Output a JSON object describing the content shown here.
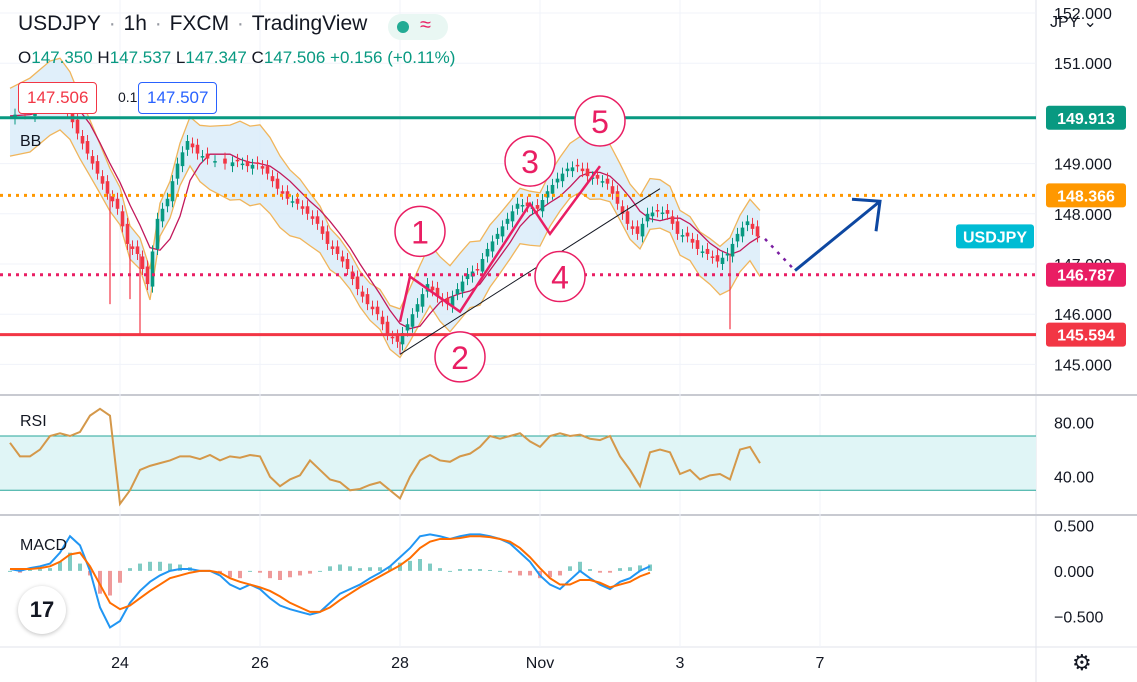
{
  "header": {
    "symbol": "USDJPY",
    "interval": "1h",
    "exchange": "FXCM",
    "platform": "TradingView",
    "open_label": "O",
    "open": "147.350",
    "high_label": "H",
    "high": "147.537",
    "low_label": "L",
    "low": "147.347",
    "close_label": "C",
    "close": "147.506",
    "change": "+0.156 (+0.11%)",
    "bid": "147.506",
    "spread": "0.1",
    "ask": "147.507"
  },
  "currency": "JPY",
  "colors": {
    "up": "#089981",
    "down": "#f23645",
    "bb_fill": "#d6eaf8",
    "bb_band": "#f0b55b",
    "bb_basis": "#c2185b",
    "wave_labels": "#e91e63",
    "arrow": "#0d47a1",
    "level_teal": "#089981",
    "level_orange": "#ff9800",
    "level_pink": "#e91e63",
    "level_red": "#f23645",
    "rsi_line": "#d4984a",
    "macd_line": "#2196f3",
    "signal_line": "#ff6d00"
  },
  "chart_data": {
    "type": "line",
    "price_pane": {
      "y_ticks": [
        "152.000",
        "151.000",
        "149.000",
        "148.000",
        "147.000",
        "146.000",
        "145.000"
      ],
      "ylim": [
        144.45,
        152.1
      ],
      "x_tick_labels": [
        "24",
        "26",
        "28",
        "Nov",
        "3",
        "7"
      ],
      "indicator": "BB",
      "levels": [
        {
          "label": "149.913",
          "value": 149.913,
          "style": "solid",
          "color": "#089981"
        },
        {
          "label": "148.366",
          "value": 148.366,
          "style": "dotted",
          "color": "#ff9800"
        },
        {
          "label": "146.787",
          "value": 146.787,
          "style": "dotted",
          "color": "#e91e63"
        },
        {
          "label": "145.594",
          "value": 145.594,
          "style": "solid",
          "color": "#f23645"
        }
      ],
      "symbol_tag": "USDJPY",
      "symbol_tag_value": 147.55,
      "price_path": [
        [
          0,
          149.95
        ],
        [
          2,
          150.0
        ],
        [
          4,
          150.25
        ],
        [
          5,
          150.3
        ],
        [
          6,
          150.05
        ],
        [
          7,
          149.6
        ],
        [
          8,
          149.2
        ],
        [
          9,
          148.8
        ],
        [
          10,
          148.4
        ],
        [
          11,
          148.1
        ],
        [
          12,
          147.4
        ],
        [
          13,
          147.2
        ],
        [
          14,
          146.6
        ],
        [
          15,
          147.9
        ],
        [
          16,
          148.3
        ],
        [
          17,
          149.0
        ],
        [
          18,
          149.45
        ],
        [
          19,
          149.2
        ],
        [
          20,
          149.1
        ],
        [
          22,
          149.0
        ],
        [
          23,
          149.05
        ],
        [
          24,
          148.95
        ],
        [
          25,
          149.0
        ],
        [
          26,
          148.8
        ],
        [
          27,
          148.5
        ],
        [
          28,
          148.3
        ],
        [
          29,
          148.2
        ],
        [
          30,
          148.0
        ],
        [
          31,
          147.8
        ],
        [
          32,
          147.4
        ],
        [
          33,
          147.2
        ],
        [
          34,
          146.9
        ],
        [
          35,
          146.5
        ],
        [
          36,
          146.2
        ],
        [
          37,
          146.0
        ],
        [
          38,
          145.6
        ],
        [
          39,
          145.45
        ],
        [
          40,
          145.8
        ],
        [
          41,
          146.2
        ],
        [
          42,
          146.6
        ],
        [
          43,
          146.35
        ],
        [
          44,
          146.2
        ],
        [
          45,
          146.5
        ],
        [
          46,
          146.8
        ],
        [
          47,
          146.9
        ],
        [
          48,
          147.3
        ],
        [
          49,
          147.6
        ],
        [
          50,
          147.9
        ],
        [
          51,
          148.2
        ],
        [
          52,
          148.15
        ],
        [
          53,
          148.1
        ],
        [
          54,
          148.45
        ],
        [
          55,
          148.7
        ],
        [
          56,
          148.9
        ],
        [
          57,
          148.95
        ],
        [
          58,
          148.75
        ],
        [
          59,
          148.7
        ],
        [
          60,
          148.6
        ],
        [
          61,
          148.2
        ],
        [
          62,
          147.8
        ],
        [
          63,
          147.6
        ],
        [
          64,
          148.0
        ],
        [
          65,
          148.05
        ],
        [
          66,
          148.0
        ],
        [
          67,
          147.6
        ],
        [
          68,
          147.55
        ],
        [
          69,
          147.3
        ],
        [
          70,
          147.2
        ],
        [
          71,
          147.05
        ],
        [
          72,
          147.2
        ],
        [
          73,
          147.6
        ],
        [
          74,
          147.85
        ],
        [
          75,
          147.55
        ]
      ],
      "spikes": [
        {
          "x": 10,
          "low": 146.2
        },
        {
          "x": 12,
          "low": 146.3
        },
        {
          "x": 13,
          "low": 145.6
        },
        {
          "x": 39,
          "low": 145.2
        },
        {
          "x": 72,
          "low": 145.7
        }
      ],
      "elliott_waves": [
        {
          "label": "1",
          "value": 146.75
        },
        {
          "label": "2",
          "value": 146.05
        },
        {
          "label": "3",
          "value": 148.2
        },
        {
          "label": "4",
          "value": 147.6
        },
        {
          "label": "5",
          "value": 148.95
        }
      ],
      "wave_circle_labels": [
        "1",
        "2",
        "3",
        "4",
        "5"
      ],
      "forecast": [
        {
          "x": 75.5,
          "price": 147.5
        },
        {
          "x": 78.5,
          "price": 146.87
        },
        {
          "x": 87,
          "price": 148.25
        }
      ]
    },
    "rsi_pane": {
      "label": "RSI",
      "y_ticks": [
        "80.00",
        "40.00"
      ],
      "ylim": [
        14,
        98
      ],
      "band": [
        70,
        30
      ],
      "values": [
        [
          0,
          65
        ],
        [
          1,
          55
        ],
        [
          2,
          55
        ],
        [
          3,
          60
        ],
        [
          4,
          70
        ],
        [
          5,
          72
        ],
        [
          6,
          70
        ],
        [
          7,
          73
        ],
        [
          8,
          85
        ],
        [
          9,
          90
        ],
        [
          10,
          85
        ],
        [
          11,
          20
        ],
        [
          12,
          30
        ],
        [
          13,
          45
        ],
        [
          14,
          48
        ],
        [
          15,
          50
        ],
        [
          16,
          52
        ],
        [
          17,
          55
        ],
        [
          18,
          55
        ],
        [
          19,
          53
        ],
        [
          20,
          56
        ],
        [
          21,
          52
        ],
        [
          22,
          55
        ],
        [
          23,
          54
        ],
        [
          24,
          56
        ],
        [
          25,
          55
        ],
        [
          26,
          40
        ],
        [
          27,
          33
        ],
        [
          28,
          38
        ],
        [
          29,
          41
        ],
        [
          30,
          52
        ],
        [
          31,
          45
        ],
        [
          32,
          38
        ],
        [
          33,
          36
        ],
        [
          34,
          30
        ],
        [
          35,
          31
        ],
        [
          36,
          34
        ],
        [
          37,
          36
        ],
        [
          38,
          30
        ],
        [
          39,
          24
        ],
        [
          40,
          40
        ],
        [
          41,
          52
        ],
        [
          42,
          56
        ],
        [
          43,
          52
        ],
        [
          44,
          51
        ],
        [
          45,
          55
        ],
        [
          46,
          57
        ],
        [
          47,
          62
        ],
        [
          48,
          70
        ],
        [
          49,
          68
        ],
        [
          50,
          70
        ],
        [
          51,
          72
        ],
        [
          52,
          66
        ],
        [
          53,
          62
        ],
        [
          54,
          70
        ],
        [
          55,
          72
        ],
        [
          56,
          70
        ],
        [
          57,
          71
        ],
        [
          58,
          68
        ],
        [
          59,
          67
        ],
        [
          60,
          70
        ],
        [
          61,
          55
        ],
        [
          62,
          45
        ],
        [
          63,
          33
        ],
        [
          64,
          58
        ],
        [
          65,
          60
        ],
        [
          66,
          58
        ],
        [
          67,
          42
        ],
        [
          68,
          45
        ],
        [
          69,
          38
        ],
        [
          70,
          41
        ],
        [
          71,
          42
        ],
        [
          72,
          38
        ],
        [
          73,
          60
        ],
        [
          74,
          62
        ],
        [
          75,
          50
        ]
      ]
    },
    "macd_pane": {
      "label": "MACD",
      "y_ticks": [
        "0.500",
        "0.000",
        "−0.500"
      ],
      "ylim": [
        -0.78,
        0.58
      ],
      "macd": [
        [
          0,
          0.02
        ],
        [
          1,
          0.0
        ],
        [
          2,
          0.03
        ],
        [
          3,
          0.05
        ],
        [
          4,
          0.08
        ],
        [
          5,
          0.2
        ],
        [
          6,
          0.38
        ],
        [
          7,
          0.28
        ],
        [
          8,
          0.0
        ],
        [
          9,
          -0.4
        ],
        [
          10,
          -0.62
        ],
        [
          11,
          -0.55
        ],
        [
          12,
          -0.35
        ],
        [
          13,
          -0.22
        ],
        [
          14,
          -0.12
        ],
        [
          15,
          -0.05
        ],
        [
          16,
          0.0
        ],
        [
          17,
          0.02
        ],
        [
          18,
          0.02
        ],
        [
          19,
          0.0
        ],
        [
          20,
          0.0
        ],
        [
          21,
          -0.05
        ],
        [
          22,
          -0.15
        ],
        [
          23,
          -0.2
        ],
        [
          24,
          -0.15
        ],
        [
          25,
          -0.2
        ],
        [
          26,
          -0.3
        ],
        [
          27,
          -0.38
        ],
        [
          28,
          -0.42
        ],
        [
          29,
          -0.45
        ],
        [
          30,
          -0.48
        ],
        [
          31,
          -0.45
        ],
        [
          32,
          -0.35
        ],
        [
          33,
          -0.25
        ],
        [
          34,
          -0.2
        ],
        [
          35,
          -0.15
        ],
        [
          36,
          -0.08
        ],
        [
          37,
          -0.02
        ],
        [
          38,
          0.05
        ],
        [
          39,
          0.15
        ],
        [
          40,
          0.25
        ],
        [
          41,
          0.38
        ],
        [
          42,
          0.4
        ],
        [
          43,
          0.38
        ],
        [
          44,
          0.35
        ],
        [
          45,
          0.38
        ],
        [
          46,
          0.4
        ],
        [
          47,
          0.4
        ],
        [
          48,
          0.38
        ],
        [
          49,
          0.35
        ],
        [
          50,
          0.3
        ],
        [
          51,
          0.2
        ],
        [
          52,
          0.1
        ],
        [
          53,
          -0.05
        ],
        [
          54,
          -0.15
        ],
        [
          55,
          -0.2
        ],
        [
          56,
          -0.1
        ],
        [
          57,
          0.0
        ],
        [
          58,
          -0.08
        ],
        [
          59,
          -0.15
        ],
        [
          60,
          -0.2
        ],
        [
          61,
          -0.12
        ],
        [
          62,
          -0.08
        ],
        [
          63,
          0.0
        ],
        [
          64,
          0.05
        ]
      ],
      "signal": [
        [
          0,
          0.02
        ],
        [
          1,
          0.02
        ],
        [
          2,
          0.02
        ],
        [
          3,
          0.03
        ],
        [
          4,
          0.05
        ],
        [
          5,
          0.1
        ],
        [
          6,
          0.18
        ],
        [
          7,
          0.2
        ],
        [
          8,
          0.05
        ],
        [
          9,
          -0.15
        ],
        [
          10,
          -0.35
        ],
        [
          11,
          -0.42
        ],
        [
          12,
          -0.38
        ],
        [
          13,
          -0.3
        ],
        [
          14,
          -0.22
        ],
        [
          15,
          -0.15
        ],
        [
          16,
          -0.08
        ],
        [
          17,
          -0.05
        ],
        [
          18,
          -0.02
        ],
        [
          19,
          0.0
        ],
        [
          20,
          0.0
        ],
        [
          21,
          -0.02
        ],
        [
          22,
          -0.08
        ],
        [
          23,
          -0.12
        ],
        [
          24,
          -0.15
        ],
        [
          25,
          -0.18
        ],
        [
          26,
          -0.22
        ],
        [
          27,
          -0.28
        ],
        [
          28,
          -0.35
        ],
        [
          29,
          -0.4
        ],
        [
          30,
          -0.45
        ],
        [
          31,
          -0.45
        ],
        [
          32,
          -0.4
        ],
        [
          33,
          -0.32
        ],
        [
          34,
          -0.25
        ],
        [
          35,
          -0.18
        ],
        [
          36,
          -0.12
        ],
        [
          37,
          -0.06
        ],
        [
          38,
          0.0
        ],
        [
          39,
          0.06
        ],
        [
          40,
          0.14
        ],
        [
          41,
          0.25
        ],
        [
          42,
          0.32
        ],
        [
          43,
          0.35
        ],
        [
          44,
          0.35
        ],
        [
          45,
          0.36
        ],
        [
          46,
          0.38
        ],
        [
          47,
          0.38
        ],
        [
          48,
          0.37
        ],
        [
          49,
          0.35
        ],
        [
          50,
          0.32
        ],
        [
          51,
          0.25
        ],
        [
          52,
          0.15
        ],
        [
          53,
          0.03
        ],
        [
          54,
          -0.08
        ],
        [
          55,
          -0.15
        ],
        [
          56,
          -0.15
        ],
        [
          57,
          -0.1
        ],
        [
          58,
          -0.1
        ],
        [
          59,
          -0.13
        ],
        [
          60,
          -0.18
        ],
        [
          61,
          -0.15
        ],
        [
          62,
          -0.12
        ],
        [
          63,
          -0.06
        ],
        [
          64,
          -0.02
        ]
      ]
    }
  }
}
